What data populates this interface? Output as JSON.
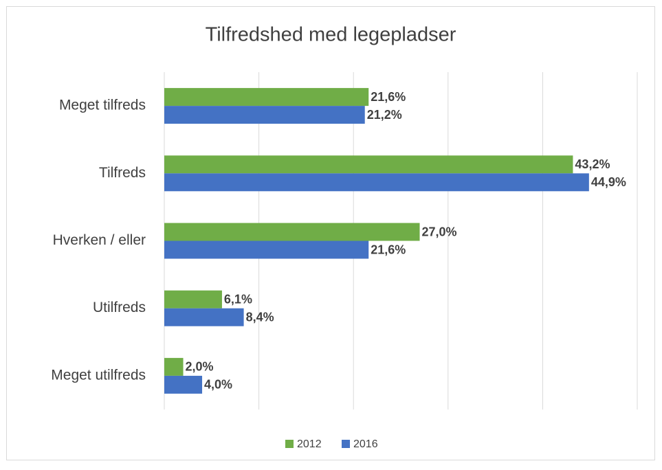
{
  "chart_data": {
    "type": "bar",
    "orientation": "horizontal",
    "title": "Tilfredshed med legepladser",
    "categories": [
      "Meget tilfreds",
      "Tilfreds",
      "Hverken / eller",
      "Utilfreds",
      "Meget utilfreds"
    ],
    "series": [
      {
        "name": "2012",
        "color": "#70ad47",
        "values": [
          21.6,
          43.2,
          27.0,
          6.1,
          2.0
        ],
        "value_labels": [
          "21,6%",
          "43,2%",
          "27,0%",
          "6,1%",
          "2,0%"
        ]
      },
      {
        "name": "2016",
        "color": "#4472c4",
        "values": [
          21.2,
          44.9,
          21.6,
          8.4,
          4.0
        ],
        "value_labels": [
          "21,2%",
          "44,9%",
          "21,6%",
          "8,4%",
          "4,0%"
        ]
      }
    ],
    "xlim": [
      0,
      50
    ],
    "xticks": [
      0,
      10,
      20,
      30,
      40,
      50
    ],
    "grid": true,
    "legend": "bottom"
  }
}
